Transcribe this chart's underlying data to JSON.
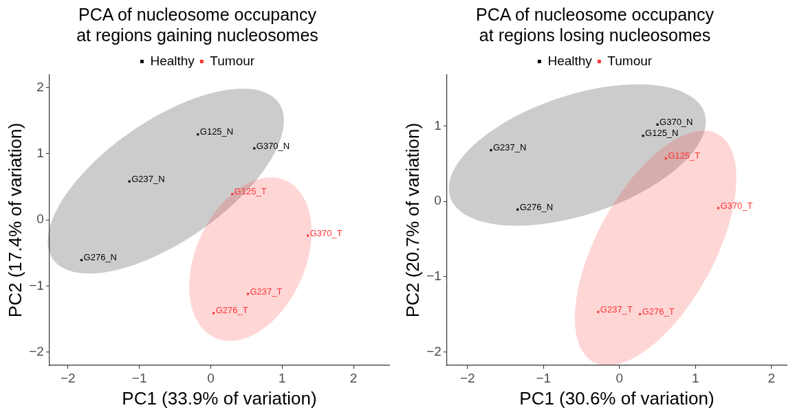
{
  "chart_data": [
    {
      "type": "scatter",
      "title": "PCA of nucleosome occupancy\nat regions gaining nucleosomes",
      "xlabel": "PC1 (33.9% of variation)",
      "ylabel": "PC2 (17.4% of variation)",
      "marker": "square",
      "legend": "top",
      "grid": false,
      "xlim": [
        -2.26,
        2.5
      ],
      "ylim": [
        -2.2,
        2.19
      ],
      "xticks": [
        -2,
        -1,
        0,
        1,
        2
      ],
      "yticks": [
        -2,
        -1,
        0,
        1,
        2
      ],
      "series": [
        {
          "name": "Healthy",
          "color": "#000000",
          "x": [
            -0.18,
            0.61,
            -1.14,
            -1.81
          ],
          "values": [
            1.29,
            1.08,
            0.58,
            -0.61
          ]
        },
        {
          "name": "Tumour",
          "color": "#ff3333",
          "x": [
            0.3,
            1.36,
            0.52,
            0.04
          ],
          "values": [
            0.39,
            -0.24,
            -1.12,
            -1.41
          ]
        }
      ],
      "annotations": [
        {
          "text": "G125_N",
          "x": -0.18,
          "y": 1.29
        },
        {
          "text": "G370_N",
          "x": 0.61,
          "y": 1.08
        },
        {
          "text": "G237_N",
          "x": -1.14,
          "y": 0.58
        },
        {
          "text": "G276_N",
          "x": -1.81,
          "y": -0.61
        },
        {
          "text": "G125_T",
          "x": 0.3,
          "y": 0.39
        },
        {
          "text": "G370_T",
          "x": 1.36,
          "y": -0.24
        },
        {
          "text": "G237_T",
          "x": 0.52,
          "y": -1.12
        },
        {
          "text": "G276_T",
          "x": 0.04,
          "y": -1.41
        }
      ]
    },
    {
      "type": "scatter",
      "title": "PCA of nucleosome occupancy\nat regions losing nucleosomes",
      "xlabel": "PC1 (30.6% of variation)",
      "ylabel": "PC2 (20.7% of variation)",
      "marker": "square",
      "legend": "top",
      "grid": false,
      "xlim": [
        -2.27,
        2.2
      ],
      "ylim": [
        -2.18,
        1.68
      ],
      "xticks": [
        -2,
        -1,
        0,
        1,
        2
      ],
      "yticks": [
        -2,
        -1,
        0,
        1
      ],
      "series": [
        {
          "name": "Healthy",
          "color": "#000000",
          "x": [
            0.5,
            0.31,
            -1.69,
            -1.34
          ],
          "values": [
            1.02,
            0.87,
            0.68,
            -0.11
          ]
        },
        {
          "name": "Tumour",
          "color": "#ff3333",
          "x": [
            0.61,
            1.3,
            -0.28,
            0.27
          ],
          "values": [
            0.57,
            -0.09,
            -1.47,
            -1.5
          ]
        }
      ],
      "annotations": [
        {
          "text": "G370_N",
          "x": 0.5,
          "y": 1.02
        },
        {
          "text": "G125_N",
          "x": 0.31,
          "y": 0.87
        },
        {
          "text": "G237_N",
          "x": -1.69,
          "y": 0.68
        },
        {
          "text": "G276_N",
          "x": -1.34,
          "y": -0.11
        },
        {
          "text": "G125_T",
          "x": 0.61,
          "y": 0.57
        },
        {
          "text": "G370_T",
          "x": 1.3,
          "y": -0.09
        },
        {
          "text": "G237_T",
          "x": -0.28,
          "y": -1.47
        },
        {
          "text": "G276_T",
          "x": 0.27,
          "y": -1.5
        }
      ]
    }
  ]
}
